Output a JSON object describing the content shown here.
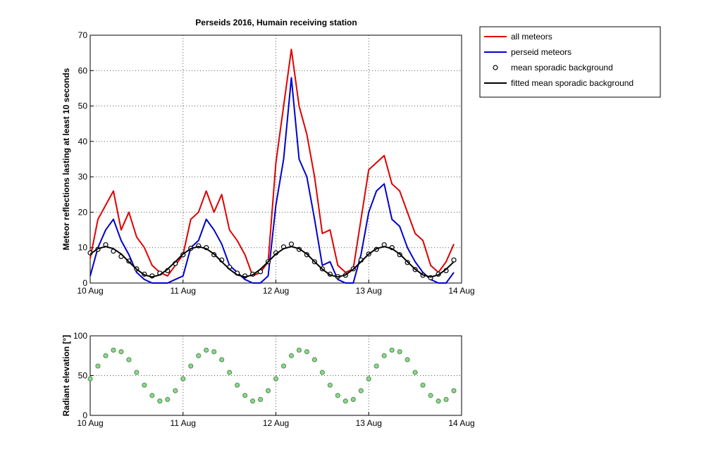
{
  "chart_data": [
    {
      "type": "line",
      "title": "Perseids 2016, Humain receiving station",
      "y_label": "Meteor reflections lasting at least 10 seconds",
      "x": [
        0,
        2,
        4,
        6,
        8,
        10,
        12,
        14,
        16,
        18,
        20,
        22,
        24,
        26,
        28,
        30,
        32,
        34,
        36,
        38,
        40,
        42,
        44,
        46,
        48,
        50,
        52,
        54,
        56,
        58,
        60,
        62,
        64,
        66,
        68,
        70,
        72,
        74,
        76,
        78,
        80,
        82,
        84,
        86,
        88,
        90,
        92,
        94
      ],
      "xlim": [
        0,
        96
      ],
      "xticks": [
        {
          "value": 0,
          "label": "10 Aug"
        },
        {
          "value": 24,
          "label": "11 Aug"
        },
        {
          "value": 48,
          "label": "12 Aug"
        },
        {
          "value": 72,
          "label": "13 Aug"
        },
        {
          "value": 96,
          "label": "14 Aug"
        }
      ],
      "ylim": [
        0,
        70
      ],
      "yticks": [
        0,
        10,
        20,
        30,
        40,
        50,
        60,
        70
      ],
      "grid": true,
      "legend": "outside-right",
      "series": [
        {
          "name": "all meteors",
          "color": "#e00000",
          "style": "line",
          "values": [
            7,
            18,
            22,
            26,
            15,
            20,
            13,
            10,
            5,
            3,
            2,
            5,
            8,
            18,
            20,
            26,
            20,
            25,
            15,
            12,
            8,
            2,
            3,
            6,
            34,
            50,
            66,
            50,
            42,
            30,
            14,
            15,
            5,
            3,
            4,
            18,
            32,
            34,
            36,
            28,
            26,
            20,
            14,
            12,
            5,
            3,
            6,
            11
          ]
        },
        {
          "name": "perseid meteors",
          "color": "#0000cc",
          "style": "line",
          "values": [
            2,
            10,
            15,
            18,
            12,
            8,
            3,
            1,
            0,
            0,
            0,
            1,
            2,
            10,
            12,
            18,
            15,
            11,
            5,
            3,
            1,
            0,
            0,
            2,
            22,
            35,
            58,
            35,
            30,
            18,
            5,
            6,
            1,
            0,
            0,
            8,
            20,
            26,
            28,
            18,
            16,
            10,
            6,
            3,
            1,
            0,
            0,
            3
          ]
        },
        {
          "name": "mean sporadic background",
          "color": "#000000",
          "style": "markers",
          "values": [
            8.5,
            9.5,
            10.8,
            9.0,
            7.5,
            6.2,
            4.0,
            2.5,
            2.0,
            2.8,
            3.5,
            5.5,
            8.0,
            9.8,
            10.5,
            10.0,
            8.0,
            6.5,
            4.5,
            2.8,
            2.0,
            2.5,
            3.2,
            6.0,
            8.5,
            10.2,
            11.0,
            9.5,
            8.0,
            6.0,
            4.0,
            2.5,
            1.8,
            2.2,
            4.0,
            6.5,
            8.2,
            9.5,
            10.8,
            10.0,
            8.0,
            5.8,
            3.8,
            2.2,
            1.5,
            2.5,
            3.5,
            6.5
          ]
        },
        {
          "name": "fitted mean sporadic background",
          "color": "#000000",
          "style": "line",
          "width": 2,
          "values": [
            8.2,
            9.7,
            10.3,
            9.7,
            8.2,
            6.0,
            3.9,
            2.3,
            1.7,
            2.3,
            3.9,
            6.0,
            8.2,
            9.7,
            10.3,
            9.7,
            8.2,
            6.0,
            3.9,
            2.3,
            1.7,
            2.3,
            3.9,
            6.0,
            8.2,
            9.7,
            10.3,
            9.7,
            8.2,
            6.0,
            3.9,
            2.3,
            1.7,
            2.3,
            3.9,
            6.0,
            8.2,
            9.7,
            10.3,
            9.7,
            8.2,
            6.0,
            3.9,
            2.3,
            1.7,
            2.3,
            3.9,
            6.0
          ]
        }
      ]
    },
    {
      "type": "scatter",
      "y_label": "Radiant elevation [°]",
      "x": [
        0,
        2,
        4,
        6,
        8,
        10,
        12,
        14,
        16,
        18,
        20,
        22,
        24,
        26,
        28,
        30,
        32,
        34,
        36,
        38,
        40,
        42,
        44,
        46,
        48,
        50,
        52,
        54,
        56,
        58,
        60,
        62,
        64,
        66,
        68,
        70,
        72,
        74,
        76,
        78,
        80,
        82,
        84,
        86,
        88,
        90,
        92,
        94
      ],
      "xlim": [
        0,
        96
      ],
      "xticks": [
        {
          "value": 0,
          "label": "10 Aug"
        },
        {
          "value": 24,
          "label": "11 Aug"
        },
        {
          "value": 48,
          "label": "12 Aug"
        },
        {
          "value": 72,
          "label": "13 Aug"
        },
        {
          "value": 96,
          "label": "14 Aug"
        }
      ],
      "ylim": [
        0,
        100
      ],
      "yticks": [
        0,
        50,
        100
      ],
      "grid": true,
      "series": [
        {
          "color": "#8ed88e",
          "style": "markers",
          "values": [
            46,
            62,
            75,
            82,
            80,
            70,
            54,
            38,
            25,
            18,
            20,
            31,
            46,
            62,
            75,
            82,
            80,
            70,
            54,
            38,
            25,
            18,
            20,
            31,
            46,
            62,
            75,
            82,
            80,
            70,
            54,
            38,
            25,
            18,
            20,
            31,
            46,
            62,
            75,
            82,
            80,
            70,
            54,
            38,
            25,
            18,
            20,
            31
          ]
        }
      ]
    }
  ]
}
